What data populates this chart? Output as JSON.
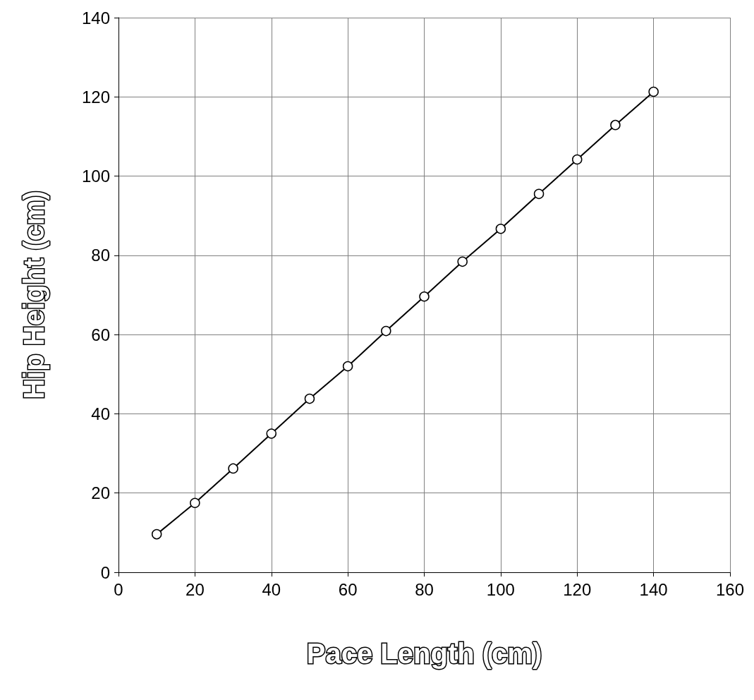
{
  "chart_data": {
    "type": "line",
    "xlabel": "Pace Length (cm)",
    "ylabel": "Hip Height (cm)",
    "x": [
      10,
      20,
      30,
      40,
      50,
      60,
      70,
      80,
      90,
      100,
      110,
      120,
      130,
      140
    ],
    "series": [
      {
        "color": "#000000",
        "values": [
          9.6,
          17.5,
          26.2,
          35.0,
          43.8,
          52.0,
          60.9,
          69.6,
          78.4,
          86.7,
          95.5,
          104.2,
          112.9,
          121.3
        ]
      }
    ],
    "xlim": [
      0,
      160
    ],
    "xticks": [
      0,
      20,
      40,
      60,
      80,
      100,
      120,
      140,
      160
    ],
    "ylim": [
      0,
      140
    ],
    "yticks": [
      0,
      20,
      40,
      60,
      80,
      100,
      120,
      140
    ],
    "grid": true,
    "marker": "circle",
    "line_style": "solid"
  }
}
